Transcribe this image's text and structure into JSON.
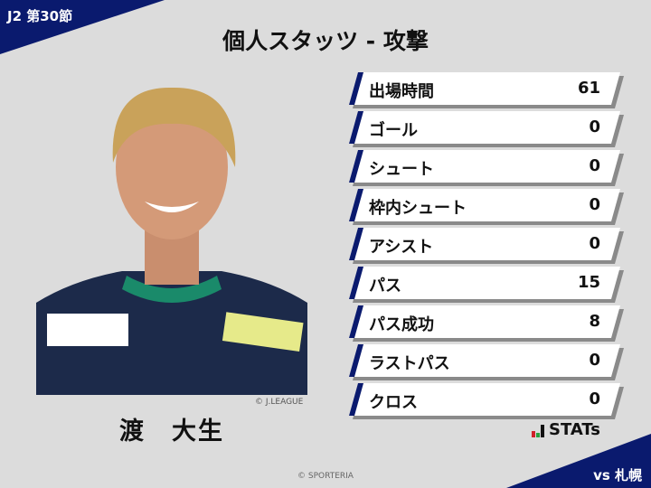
{
  "header": {
    "round": "J2 第30節",
    "title": "個人スタッツ - 攻撃",
    "opponent": "vs 札幌"
  },
  "player": {
    "name": "渡　大生",
    "photo_credit": "© J.LEAGUE"
  },
  "stats": [
    {
      "label": "出場時間",
      "value": "61"
    },
    {
      "label": "ゴール",
      "value": "0"
    },
    {
      "label": "シュート",
      "value": "0"
    },
    {
      "label": "枠内シュート",
      "value": "0"
    },
    {
      "label": "アシスト",
      "value": "0"
    },
    {
      "label": "パス",
      "value": "15"
    },
    {
      "label": "パス成功",
      "value": "8"
    },
    {
      "label": "ラストパス",
      "value": "0"
    },
    {
      "label": "クロス",
      "value": "0"
    }
  ],
  "logo": {
    "text": "STATs"
  },
  "footer": {
    "copyright": "© SPORTERIA"
  },
  "colors": {
    "navy": "#0a1a6e",
    "background": "#dcdcdc"
  }
}
